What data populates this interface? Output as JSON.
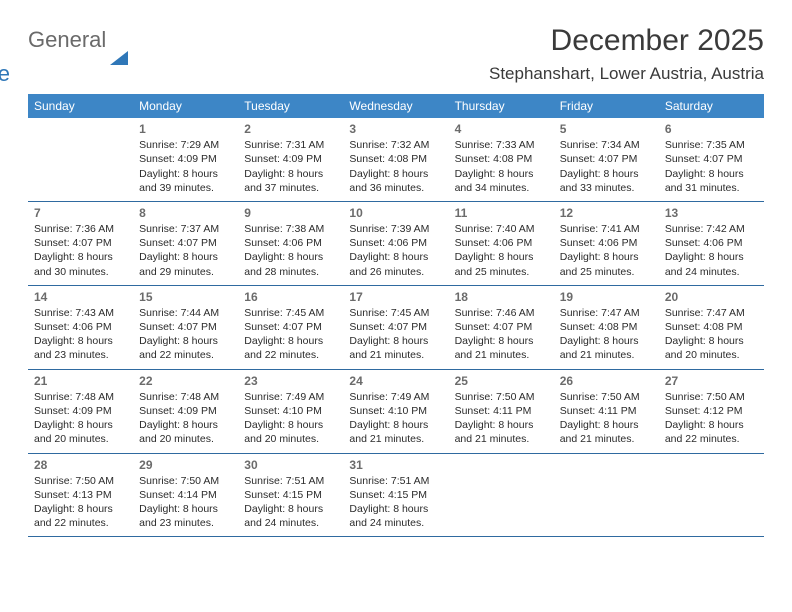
{
  "logo": {
    "text1": "General",
    "text2": "Blue"
  },
  "title": "December 2025",
  "location": "Stephanshart, Lower Austria, Austria",
  "colors": {
    "header_bg": "#3d86c6",
    "header_fg": "#ffffff",
    "rule": "#2f6aa0",
    "daynum": "#6b6b6b",
    "body_text": "#2b2b2b",
    "logo_gray": "#6a6a6a",
    "logo_blue": "#2f77b8"
  },
  "days_of_week": [
    "Sunday",
    "Monday",
    "Tuesday",
    "Wednesday",
    "Thursday",
    "Friday",
    "Saturday"
  ],
  "weeks": [
    [
      null,
      {
        "n": "1",
        "sr": "7:29 AM",
        "ss": "4:09 PM",
        "dl": "8 hours and 39 minutes."
      },
      {
        "n": "2",
        "sr": "7:31 AM",
        "ss": "4:09 PM",
        "dl": "8 hours and 37 minutes."
      },
      {
        "n": "3",
        "sr": "7:32 AM",
        "ss": "4:08 PM",
        "dl": "8 hours and 36 minutes."
      },
      {
        "n": "4",
        "sr": "7:33 AM",
        "ss": "4:08 PM",
        "dl": "8 hours and 34 minutes."
      },
      {
        "n": "5",
        "sr": "7:34 AM",
        "ss": "4:07 PM",
        "dl": "8 hours and 33 minutes."
      },
      {
        "n": "6",
        "sr": "7:35 AM",
        "ss": "4:07 PM",
        "dl": "8 hours and 31 minutes."
      }
    ],
    [
      {
        "n": "7",
        "sr": "7:36 AM",
        "ss": "4:07 PM",
        "dl": "8 hours and 30 minutes."
      },
      {
        "n": "8",
        "sr": "7:37 AM",
        "ss": "4:07 PM",
        "dl": "8 hours and 29 minutes."
      },
      {
        "n": "9",
        "sr": "7:38 AM",
        "ss": "4:06 PM",
        "dl": "8 hours and 28 minutes."
      },
      {
        "n": "10",
        "sr": "7:39 AM",
        "ss": "4:06 PM",
        "dl": "8 hours and 26 minutes."
      },
      {
        "n": "11",
        "sr": "7:40 AM",
        "ss": "4:06 PM",
        "dl": "8 hours and 25 minutes."
      },
      {
        "n": "12",
        "sr": "7:41 AM",
        "ss": "4:06 PM",
        "dl": "8 hours and 25 minutes."
      },
      {
        "n": "13",
        "sr": "7:42 AM",
        "ss": "4:06 PM",
        "dl": "8 hours and 24 minutes."
      }
    ],
    [
      {
        "n": "14",
        "sr": "7:43 AM",
        "ss": "4:06 PM",
        "dl": "8 hours and 23 minutes."
      },
      {
        "n": "15",
        "sr": "7:44 AM",
        "ss": "4:07 PM",
        "dl": "8 hours and 22 minutes."
      },
      {
        "n": "16",
        "sr": "7:45 AM",
        "ss": "4:07 PM",
        "dl": "8 hours and 22 minutes."
      },
      {
        "n": "17",
        "sr": "7:45 AM",
        "ss": "4:07 PM",
        "dl": "8 hours and 21 minutes."
      },
      {
        "n": "18",
        "sr": "7:46 AM",
        "ss": "4:07 PM",
        "dl": "8 hours and 21 minutes."
      },
      {
        "n": "19",
        "sr": "7:47 AM",
        "ss": "4:08 PM",
        "dl": "8 hours and 21 minutes."
      },
      {
        "n": "20",
        "sr": "7:47 AM",
        "ss": "4:08 PM",
        "dl": "8 hours and 20 minutes."
      }
    ],
    [
      {
        "n": "21",
        "sr": "7:48 AM",
        "ss": "4:09 PM",
        "dl": "8 hours and 20 minutes."
      },
      {
        "n": "22",
        "sr": "7:48 AM",
        "ss": "4:09 PM",
        "dl": "8 hours and 20 minutes."
      },
      {
        "n": "23",
        "sr": "7:49 AM",
        "ss": "4:10 PM",
        "dl": "8 hours and 20 minutes."
      },
      {
        "n": "24",
        "sr": "7:49 AM",
        "ss": "4:10 PM",
        "dl": "8 hours and 21 minutes."
      },
      {
        "n": "25",
        "sr": "7:50 AM",
        "ss": "4:11 PM",
        "dl": "8 hours and 21 minutes."
      },
      {
        "n": "26",
        "sr": "7:50 AM",
        "ss": "4:11 PM",
        "dl": "8 hours and 21 minutes."
      },
      {
        "n": "27",
        "sr": "7:50 AM",
        "ss": "4:12 PM",
        "dl": "8 hours and 22 minutes."
      }
    ],
    [
      {
        "n": "28",
        "sr": "7:50 AM",
        "ss": "4:13 PM",
        "dl": "8 hours and 22 minutes."
      },
      {
        "n": "29",
        "sr": "7:50 AM",
        "ss": "4:14 PM",
        "dl": "8 hours and 23 minutes."
      },
      {
        "n": "30",
        "sr": "7:51 AM",
        "ss": "4:15 PM",
        "dl": "8 hours and 24 minutes."
      },
      {
        "n": "31",
        "sr": "7:51 AM",
        "ss": "4:15 PM",
        "dl": "8 hours and 24 minutes."
      },
      null,
      null,
      null
    ]
  ],
  "labels": {
    "sunrise": "Sunrise:",
    "sunset": "Sunset:",
    "daylight": "Daylight:"
  }
}
